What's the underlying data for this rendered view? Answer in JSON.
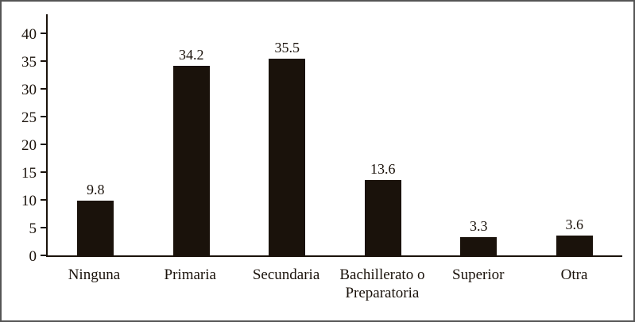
{
  "chart_data": {
    "type": "bar",
    "title": "",
    "xlabel": "",
    "ylabel": "",
    "categories": [
      "Ninguna",
      "Primaria",
      "Secundaria",
      "Bachillerato o Preparatoria",
      "Superior",
      "Otra"
    ],
    "values": [
      9.8,
      34.2,
      35.5,
      13.6,
      3.3,
      3.6
    ],
    "value_labels": [
      "9.8",
      "34.2",
      "35.5",
      "13.6",
      "3.3",
      "3.6"
    ],
    "ylim": [
      0,
      40
    ],
    "yticks": [
      0,
      5,
      10,
      15,
      20,
      25,
      30,
      35,
      40
    ],
    "grid": false,
    "legend_position": "none",
    "bar_color": "#1a120b",
    "axis_color": "#1a120b",
    "border_color": "#555555",
    "background_color": "#ffffff"
  }
}
